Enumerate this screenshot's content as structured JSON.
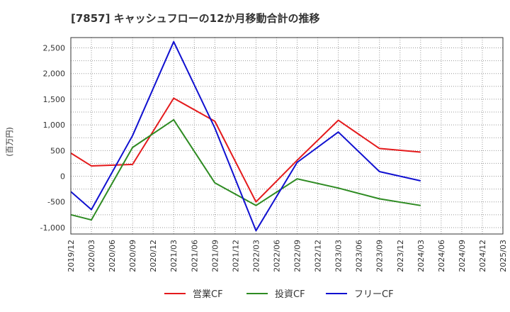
{
  "chart_data": {
    "type": "line",
    "title": "[7857]  キャッシュフローの12か月移動合計の推移",
    "ylabel": "(百万円)",
    "xlabel": "",
    "ylim": [
      -1125,
      2700
    ],
    "yticks": [
      -1000,
      -500,
      0,
      500,
      1000,
      1500,
      2000,
      2500
    ],
    "ytick_labels": [
      "-1,000",
      "-500",
      "0",
      "500",
      "1,000",
      "1,500",
      "2,000",
      "2,500"
    ],
    "categories": [
      "2019/12",
      "2020/03",
      "2020/06",
      "2020/09",
      "2020/12",
      "2021/03",
      "2021/06",
      "2021/09",
      "2021/12",
      "2022/03",
      "2022/06",
      "2022/09",
      "2022/12",
      "2023/03",
      "2023/06",
      "2023/09",
      "2023/12",
      "2024/03",
      "2024/06",
      "2024/09",
      "2024/12",
      "2025/03"
    ],
    "grid": true,
    "legend_position": "bottom",
    "series": [
      {
        "name": "営業CF",
        "color": "#e41a1c",
        "values": [
          450,
          200,
          null,
          230,
          null,
          1520,
          null,
          1070,
          null,
          -500,
          null,
          310,
          null,
          1090,
          null,
          540,
          null,
          470,
          null,
          null,
          null,
          null
        ]
      },
      {
        "name": "投資CF",
        "color": "#2e8b22",
        "values": [
          -750,
          -850,
          null,
          560,
          null,
          1100,
          null,
          -130,
          null,
          -570,
          null,
          -50,
          null,
          -230,
          null,
          -440,
          null,
          -570,
          null,
          null,
          null,
          null
        ]
      },
      {
        "name": "フリーCF",
        "color": "#1010d0",
        "values": [
          -300,
          -650,
          null,
          790,
          null,
          2620,
          null,
          940,
          null,
          -1060,
          null,
          270,
          null,
          860,
          null,
          90,
          null,
          -90,
          null,
          null,
          null,
          null
        ]
      }
    ]
  }
}
